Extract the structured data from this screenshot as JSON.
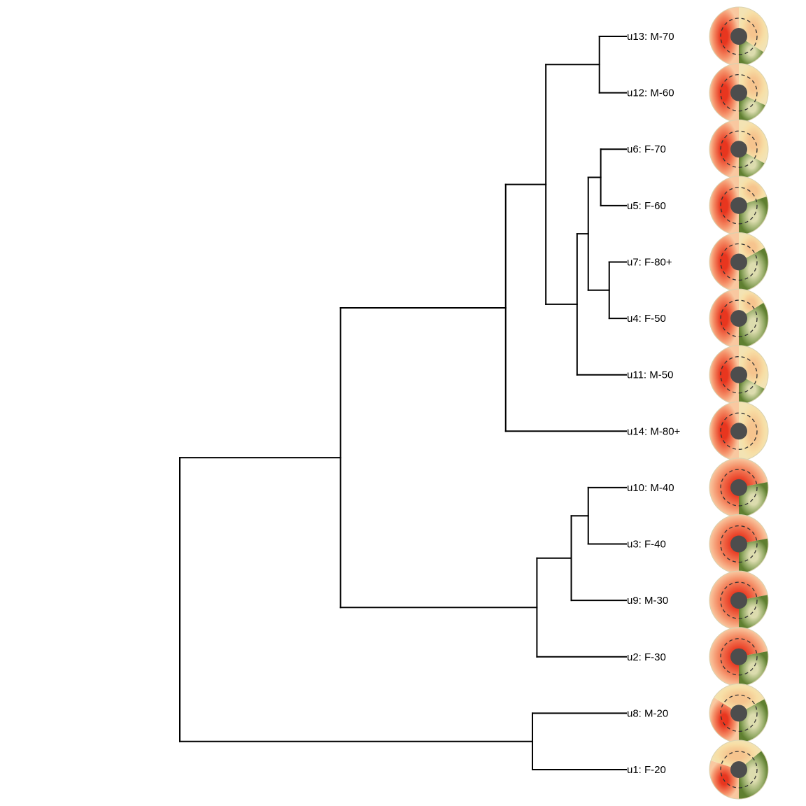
{
  "leaves": [
    {
      "id": "u13",
      "label": "u13: M-70",
      "wedges": [
        0.5,
        0.34,
        0.16
      ]
    },
    {
      "id": "u12",
      "label": "u12: M-60",
      "wedges": [
        0.5,
        0.32,
        0.18
      ]
    },
    {
      "id": "u6",
      "label": "u6: F-70",
      "wedges": [
        0.5,
        0.33,
        0.17
      ]
    },
    {
      "id": "u5",
      "label": "u5: F-60",
      "wedges": [
        0.5,
        0.2,
        0.3
      ]
    },
    {
      "id": "u7",
      "label": "u7: F-80+",
      "wedges": [
        0.5,
        0.17,
        0.33
      ]
    },
    {
      "id": "u4",
      "label": "u4: F-50",
      "wedges": [
        0.5,
        0.16,
        0.34
      ]
    },
    {
      "id": "u11",
      "label": "u11: M-50",
      "wedges": [
        0.5,
        0.33,
        0.17
      ]
    },
    {
      "id": "u14",
      "label": "u14: M-80+",
      "wedges": [
        0.5,
        0.5,
        0.0
      ]
    },
    {
      "id": "u10",
      "label": "u10: M-40",
      "wedges": [
        0.72,
        0.0,
        0.28
      ]
    },
    {
      "id": "u3",
      "label": "u3: F-40",
      "wedges": [
        0.72,
        0.0,
        0.28
      ]
    },
    {
      "id": "u9",
      "label": "u9: M-30",
      "wedges": [
        0.72,
        0.0,
        0.28
      ]
    },
    {
      "id": "u2",
      "label": "u2: F-30",
      "wedges": [
        0.72,
        0.0,
        0.28
      ]
    },
    {
      "id": "u8",
      "label": "u8: M-20",
      "wedges": [
        0.34,
        0.33,
        0.33
      ]
    },
    {
      "id": "u1",
      "label": "u1: F-20",
      "wedges": [
        0.3,
        0.34,
        0.36
      ]
    }
  ],
  "tree": {
    "h": 1.0,
    "children": [
      {
        "h": 0.64,
        "children": [
          {
            "h": 0.27,
            "children": [
              {
                "h": 0.18,
                "children": [
                  {
                    "h": 0.06,
                    "children": [
                      {
                        "leaf": 0
                      },
                      {
                        "leaf": 1
                      }
                    ]
                  },
                  {
                    "h": 0.11,
                    "children": [
                      {
                        "h": 0.085,
                        "children": [
                          {
                            "h": 0.057,
                            "children": [
                              {
                                "leaf": 2
                              },
                              {
                                "leaf": 3
                              }
                            ]
                          },
                          {
                            "h": 0.038,
                            "children": [
                              {
                                "leaf": 4
                              },
                              {
                                "leaf": 5
                              }
                            ]
                          }
                        ]
                      },
                      {
                        "leaf": 6
                      }
                    ]
                  }
                ]
              },
              {
                "leaf": 7
              }
            ]
          },
          {
            "h": 0.2,
            "children": [
              {
                "h": 0.123,
                "children": [
                  {
                    "h": 0.085,
                    "children": [
                      {
                        "leaf": 8
                      },
                      {
                        "leaf": 9
                      }
                    ]
                  },
                  {
                    "leaf": 10
                  }
                ]
              },
              {
                "leaf": 11
              }
            ]
          }
        ]
      },
      {
        "h": 0.21,
        "children": [
          {
            "leaf": 12
          },
          {
            "leaf": 13
          }
        ]
      }
    ]
  },
  "colors": {
    "branch": "#000000",
    "red": "#f25a3c",
    "beige": "#f7dfa3",
    "green": "#6e8a3a",
    "hub": "#4d4d4d"
  }
}
